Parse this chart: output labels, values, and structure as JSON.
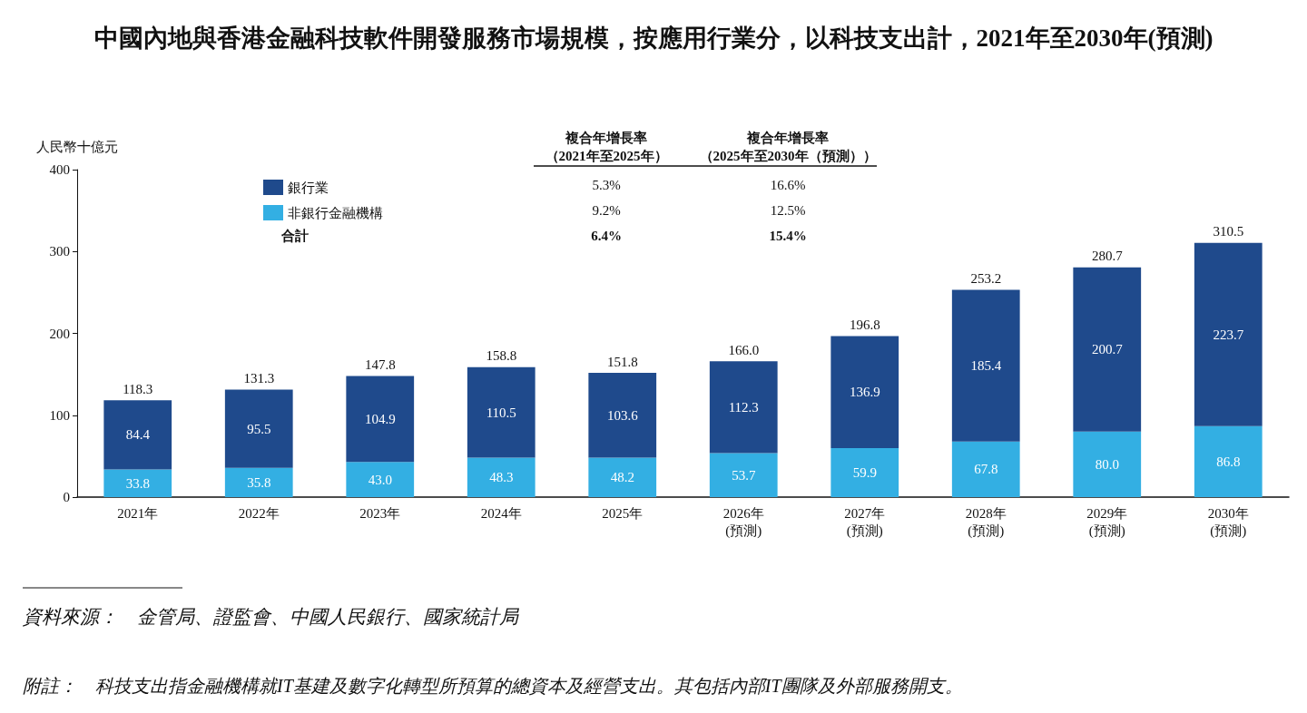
{
  "chart_data": {
    "type": "bar",
    "title": "中國內地與香港金融科技軟件開發服務市場規模，按應用行業分，以科技支出計，2021年至2030年(預測)",
    "ylabel": "人民幣十億元",
    "categories": [
      "2021年",
      "2022年",
      "2023年",
      "2024年",
      "2025年",
      "2026年\n(預測)",
      "2027年\n(預測)",
      "2028年\n(預測)",
      "2029年\n(預測)",
      "2030年\n(預測)"
    ],
    "stacked": true,
    "series": [
      {
        "name": "非銀行金融機構",
        "color": "#33afe3",
        "values": [
          33.8,
          35.8,
          43.0,
          48.3,
          48.2,
          53.7,
          59.9,
          67.8,
          80.0,
          86.8
        ],
        "value_labels": [
          "33.8",
          "35.8",
          "43.0",
          "48.3",
          "48.2",
          "53.7",
          "59.9",
          "67.8",
          "80.0",
          "86.8"
        ]
      },
      {
        "name": "銀行業",
        "color": "#1f4a8c",
        "values": [
          84.4,
          95.5,
          104.9,
          110.5,
          103.6,
          112.3,
          136.9,
          185.4,
          200.7,
          223.7
        ],
        "value_labels": [
          "84.4",
          "95.5",
          "104.9",
          "110.5",
          "103.6",
          "112.3",
          "136.9",
          "185.4",
          "200.7",
          "223.7"
        ]
      }
    ],
    "totals": [
      "118.3",
      "131.3",
      "147.8",
      "158.8",
      "151.8",
      "166.0",
      "196.8",
      "253.2",
      "280.7",
      "310.5"
    ],
    "ylim": [
      0,
      400
    ],
    "yticks": [
      0,
      100,
      200,
      300,
      400
    ],
    "grid": false,
    "legend": "top left",
    "annotations": [
      "複合年增長率",
      "（2021年至2025年）",
      "複合年增長率",
      "（2025年至2030年（預測））",
      "5.3%",
      "16.6%",
      "9.2%",
      "12.5%",
      "合計",
      "6.4%",
      "15.4%",
      "資料來源：　金管局、證監會、中國人民銀行、國家統計局",
      "附註：　科技支出指金融機構就IT基建及數字化轉型所預算的總資本及經營支出。其包括內部IT團隊及外部服務開支。"
    ]
  }
}
